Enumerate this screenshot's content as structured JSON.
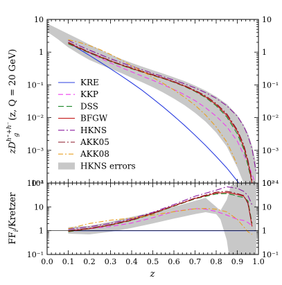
{
  "chart_data": [
    {
      "type": "line",
      "panel": "top",
      "ylabel_text": "zD",
      "ylabel_sub": "g",
      "ylabel_sup": "h⁺+h⁻",
      "ylabel_tail": "(z, Q = 20 GeV)",
      "xlim": [
        0.0,
        1.0
      ],
      "ylim": [
        0.0001,
        10
      ],
      "yscale": "log",
      "y_ticks_left": [
        "10",
        "1",
        "10⁻¹",
        "10⁻²",
        "10⁻³",
        "10⁻⁴"
      ],
      "y_ticks_right": [
        "10",
        "1",
        "10⁻¹",
        "10⁻²",
        "10⁻³",
        "10⁻⁴"
      ],
      "y_tick_values": [
        10,
        1,
        0.1,
        0.01,
        0.001,
        0.0001
      ],
      "legend_position": "left",
      "band": {
        "name": "HKNS errors",
        "color": "#c8c8c8",
        "x": [
          0.0,
          0.05,
          0.1,
          0.15,
          0.2,
          0.25,
          0.3,
          0.35,
          0.4,
          0.45,
          0.5,
          0.55,
          0.6,
          0.65,
          0.7,
          0.75,
          0.8,
          0.85,
          0.9,
          0.93,
          0.95,
          0.97,
          0.99
        ],
        "upper": [
          7.5,
          5.2,
          3.6,
          2.5,
          1.7,
          1.2,
          0.85,
          0.62,
          0.47,
          0.36,
          0.28,
          0.22,
          0.17,
          0.13,
          0.095,
          0.067,
          0.044,
          0.026,
          0.012,
          0.006,
          0.0033,
          0.0014,
          0.0004
        ],
        "lower": [
          4.2,
          2.5,
          1.4,
          0.88,
          0.58,
          0.42,
          0.31,
          0.23,
          0.165,
          0.12,
          0.085,
          0.058,
          0.038,
          0.024,
          0.014,
          0.0075,
          0.0035,
          0.0013,
          0.0003,
          0.0001,
          0.0001,
          0.0001,
          0.0001
        ]
      },
      "series": [
        {
          "name": "KRE",
          "color": "#2a3de0",
          "dash": "",
          "x": [
            0.1,
            0.15,
            0.2,
            0.25,
            0.3,
            0.35,
            0.4,
            0.45,
            0.5,
            0.55,
            0.6,
            0.65,
            0.7,
            0.75,
            0.8,
            0.85,
            0.9,
            0.93,
            0.95
          ],
          "y": [
            2.0,
            1.25,
            0.8,
            0.5,
            0.31,
            0.19,
            0.115,
            0.068,
            0.038,
            0.021,
            0.0112,
            0.0058,
            0.0029,
            0.0014,
            0.00065,
            0.00029,
            0.000115,
            6.5e-05,
            0.0001
          ]
        },
        {
          "name": "KKP",
          "color": "#ee3fee",
          "dash": "7,4",
          "x": [
            0.1,
            0.15,
            0.2,
            0.25,
            0.3,
            0.35,
            0.4,
            0.45,
            0.5,
            0.55,
            0.6,
            0.65,
            0.7,
            0.75,
            0.8,
            0.85,
            0.9,
            0.95,
            0.98
          ],
          "y": [
            2.0,
            1.35,
            0.95,
            0.66,
            0.47,
            0.34,
            0.25,
            0.185,
            0.138,
            0.1,
            0.072,
            0.05,
            0.033,
            0.02,
            0.011,
            0.0053,
            0.0019,
            0.0004,
            0.00012
          ]
        },
        {
          "name": "DSS",
          "color": "#1e8a2a",
          "dash": "8,4",
          "x": [
            0.1,
            0.15,
            0.2,
            0.25,
            0.3,
            0.35,
            0.4,
            0.45,
            0.5,
            0.55,
            0.6,
            0.65,
            0.7,
            0.75,
            0.8,
            0.85,
            0.9,
            0.93,
            0.95,
            0.97
          ],
          "y": [
            1.8,
            1.3,
            0.95,
            0.7,
            0.52,
            0.4,
            0.31,
            0.245,
            0.195,
            0.155,
            0.12,
            0.09,
            0.063,
            0.041,
            0.023,
            0.0105,
            0.0032,
            0.0011,
            0.00035,
            0.0001
          ]
        },
        {
          "name": "BFGW",
          "color": "#c41a1a",
          "dash": "",
          "x": [
            0.1,
            0.15,
            0.2,
            0.25,
            0.3,
            0.35,
            0.4,
            0.45,
            0.5,
            0.55,
            0.6,
            0.65,
            0.7,
            0.75,
            0.8,
            0.85,
            0.9,
            0.93,
            0.95,
            0.97
          ],
          "y": [
            1.9,
            1.35,
            0.98,
            0.72,
            0.54,
            0.41,
            0.32,
            0.25,
            0.2,
            0.158,
            0.123,
            0.092,
            0.065,
            0.043,
            0.025,
            0.0118,
            0.0038,
            0.0013,
            0.00045,
            0.0001
          ]
        },
        {
          "name": "HKNS",
          "color": "#8a1a9e",
          "dash": "9,3,2,3",
          "x": [
            0.1,
            0.15,
            0.2,
            0.25,
            0.3,
            0.35,
            0.4,
            0.45,
            0.5,
            0.55,
            0.6,
            0.65,
            0.7,
            0.75,
            0.8,
            0.85,
            0.9,
            0.93,
            0.95,
            0.97,
            0.99
          ],
          "y": [
            2.3,
            1.6,
            1.15,
            0.85,
            0.63,
            0.48,
            0.37,
            0.29,
            0.225,
            0.178,
            0.14,
            0.108,
            0.081,
            0.058,
            0.039,
            0.023,
            0.011,
            0.0055,
            0.0028,
            0.0011,
            0.0002
          ]
        },
        {
          "name": "AKK05",
          "color": "#8a1424",
          "dash": "10,3,2,3",
          "x": [
            0.1,
            0.15,
            0.2,
            0.25,
            0.3,
            0.35,
            0.4,
            0.45,
            0.5,
            0.55,
            0.6,
            0.65,
            0.7,
            0.75,
            0.8,
            0.85,
            0.9,
            0.93,
            0.95,
            0.97
          ],
          "y": [
            2.0,
            1.4,
            1.0,
            0.74,
            0.55,
            0.42,
            0.33,
            0.26,
            0.205,
            0.162,
            0.126,
            0.095,
            0.068,
            0.046,
            0.027,
            0.013,
            0.0042,
            0.0015,
            0.0005,
            0.00012
          ]
        },
        {
          "name": "AKK08",
          "color": "#e8a020",
          "dash": "7,3,2,3",
          "x": [
            0.1,
            0.15,
            0.2,
            0.25,
            0.3,
            0.35,
            0.4,
            0.45,
            0.5,
            0.55,
            0.6,
            0.65,
            0.7,
            0.75,
            0.8,
            0.85,
            0.88,
            0.9
          ],
          "y": [
            2.4,
            2.0,
            1.6,
            1.2,
            0.85,
            0.58,
            0.39,
            0.26,
            0.17,
            0.11,
            0.07,
            0.042,
            0.024,
            0.012,
            0.0052,
            0.0018,
            0.0007,
            0.00035
          ]
        }
      ]
    },
    {
      "type": "line",
      "panel": "bottom",
      "ylabel": "FF",
      "ylabel_sub": "i",
      "ylabel_tail": "/Kretzer",
      "xlabel": "z",
      "xlim": [
        0.0,
        1.0
      ],
      "ylim": [
        0.1,
        100
      ],
      "yscale": "log",
      "x_ticks": [
        "0.0",
        "0.1",
        "0.2",
        "0.3",
        "0.4",
        "0.5",
        "0.6",
        "0.7",
        "0.8",
        "0.9",
        "1.0"
      ],
      "x_tick_values": [
        0.0,
        0.1,
        0.2,
        0.3,
        0.4,
        0.5,
        0.6,
        0.7,
        0.8,
        0.9,
        1.0
      ],
      "y_ticks_left": [
        "10²",
        "10",
        "1",
        "10⁻¹"
      ],
      "y_ticks_right": [
        "10²",
        "10",
        "1",
        "10⁻¹"
      ],
      "y_tick_values": [
        100,
        10,
        1,
        0.1
      ],
      "band": {
        "color": "#c8c8c8",
        "x": [
          0.1,
          0.2,
          0.3,
          0.4,
          0.5,
          0.6,
          0.7,
          0.75,
          0.8,
          0.82,
          0.85,
          0.86,
          0.87,
          0.9,
          0.93,
          0.95,
          0.97,
          0.99
        ],
        "upper": [
          1.4,
          1.6,
          2.4,
          3.8,
          6.0,
          10.0,
          18.0,
          24.0,
          10.0,
          7.0,
          20.0,
          40.0,
          80.0,
          100.0,
          100.0,
          100.0,
          100.0,
          100.0
        ],
        "lower": [
          0.75,
          0.7,
          0.9,
          1.3,
          2.0,
          3.2,
          5.0,
          6.0,
          5.0,
          3.0,
          0.4,
          0.1,
          0.1,
          0.1,
          0.1,
          0.1,
          0.1,
          0.1
        ]
      },
      "series": [
        {
          "name": "KRE",
          "color": "#2a3de0",
          "dash": "",
          "x": [
            0.1,
            0.99
          ],
          "y": [
            1.0,
            1.0
          ]
        },
        {
          "name": "KKP",
          "color": "#ee3fee",
          "dash": "7,4",
          "x": [
            0.1,
            0.2,
            0.3,
            0.4,
            0.5,
            0.6,
            0.7,
            0.75,
            0.8,
            0.85,
            0.9,
            0.93,
            0.95,
            0.97
          ],
          "y": [
            1.0,
            1.2,
            1.5,
            2.1,
            3.5,
            6.4,
            8.5,
            8.0,
            6.5,
            4.5,
            3.0,
            2.7,
            2.2,
            1.6
          ]
        },
        {
          "name": "DSS",
          "color": "#1e8a2a",
          "dash": "8,4",
          "x": [
            0.1,
            0.2,
            0.3,
            0.4,
            0.5,
            0.6,
            0.7,
            0.8,
            0.85,
            0.88,
            0.9,
            0.93,
            0.95,
            0.97
          ],
          "y": [
            0.9,
            1.2,
            1.7,
            2.7,
            5.1,
            10.7,
            21.7,
            35.0,
            36.0,
            32.0,
            28.0,
            25.0,
            18.0,
            2.0
          ]
        },
        {
          "name": "BFGW",
          "color": "#c41a1a",
          "dash": "",
          "x": [
            0.1,
            0.2,
            0.3,
            0.4,
            0.5,
            0.6,
            0.7,
            0.8,
            0.85,
            0.88,
            0.9,
            0.93,
            0.95,
            0.97
          ],
          "y": [
            0.95,
            1.22,
            1.75,
            2.8,
            5.3,
            11.0,
            22.5,
            38.0,
            40.0,
            36.0,
            33.0,
            28.0,
            15.0,
            1.5
          ]
        },
        {
          "name": "HKNS",
          "color": "#8a1a9e",
          "dash": "9,3,2,3",
          "x": [
            0.1,
            0.2,
            0.3,
            0.4,
            0.5,
            0.6,
            0.7,
            0.8,
            0.85,
            0.9,
            0.93,
            0.95,
            0.97
          ],
          "y": [
            1.15,
            1.45,
            2.05,
            3.2,
            5.9,
            12.5,
            27.9,
            50.0,
            70.0,
            60.0,
            45.0,
            30.0,
            12.0
          ]
        },
        {
          "name": "AKK05",
          "color": "#8a1424",
          "dash": "10,3,2,3",
          "x": [
            0.1,
            0.2,
            0.3,
            0.4,
            0.5,
            0.6,
            0.7,
            0.8,
            0.85,
            0.88,
            0.9,
            0.93,
            0.95,
            0.97
          ],
          "y": [
            1.0,
            1.25,
            1.8,
            2.9,
            5.5,
            11.3,
            23.4,
            41.5,
            45.0,
            40.0,
            36.0,
            30.0,
            14.0,
            1.8
          ]
        },
        {
          "name": "AKK08",
          "color": "#e8a020",
          "dash": "7,3,2,3",
          "x": [
            0.1,
            0.2,
            0.3,
            0.4,
            0.5,
            0.6,
            0.7,
            0.75,
            0.8,
            0.85,
            0.9,
            0.95,
            0.97
          ],
          "y": [
            1.2,
            2.0,
            2.75,
            3.4,
            4.5,
            6.25,
            8.3,
            8.6,
            8.0,
            6.2,
            3.0,
            0.9,
            0.7
          ]
        }
      ]
    }
  ]
}
